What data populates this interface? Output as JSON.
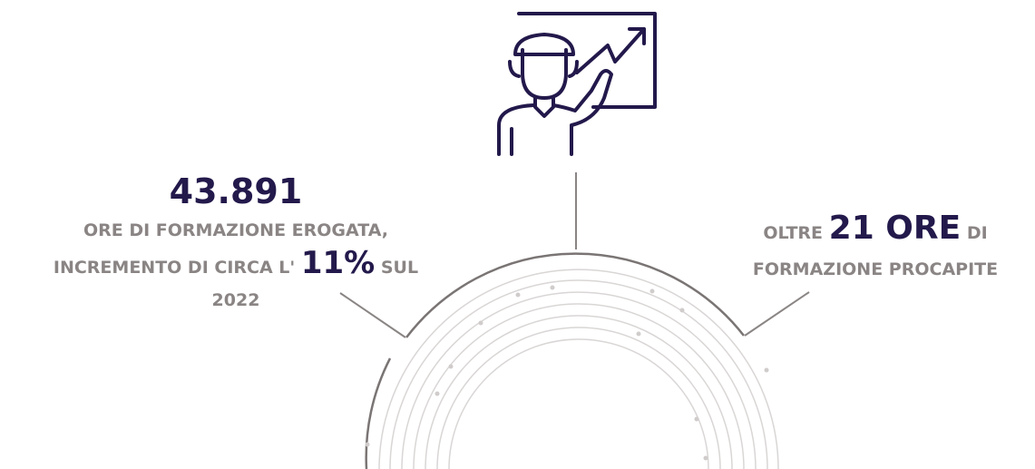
{
  "icon": "teacher-presenting-chart-icon",
  "left_stat": {
    "value": "43.891",
    "line1": "ORE DI FORMAZIONE EROGATA,",
    "line2_prefix": "INCREMENTO DI CIRCA L'",
    "highlight": "11%",
    "line2_suffix": "SUL",
    "line3": "2022"
  },
  "right_stat": {
    "prefix": "OLTRE",
    "highlight": "21 ORE",
    "suffix": "DI",
    "line2": "FORMAZIONE PROCAPITE"
  },
  "colors": {
    "primary": "#23194b",
    "text_gray": "#8a8584",
    "line_gray": "#9a9594",
    "circle_light": "#d9d6d5"
  }
}
